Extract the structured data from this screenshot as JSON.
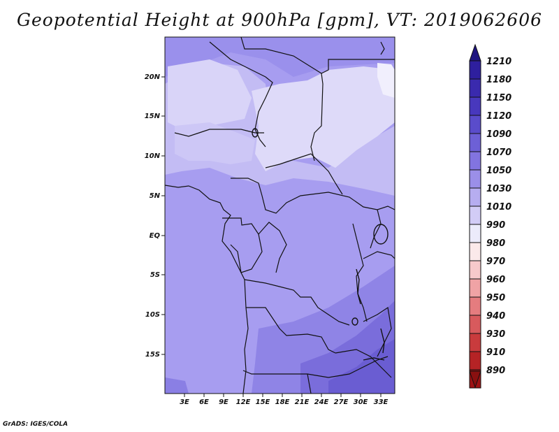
{
  "title": "Geopotential Height at 900hPa [gpm], VT: 2019062606",
  "credit": "GrADS: IGES/COLA",
  "map": {
    "lat_ticks": [
      "20N",
      "15N",
      "10N",
      "5N",
      "EQ",
      "5S",
      "10S",
      "15S"
    ],
    "lon_ticks": [
      "3E",
      "6E",
      "9E",
      "12E",
      "15E",
      "18E",
      "21E",
      "24E",
      "27E",
      "30E",
      "33E"
    ]
  },
  "colorbar": {
    "levels": [
      {
        "label": "1210",
        "color": "#2e1f9e"
      },
      {
        "label": "1180",
        "color": "#3a2aae"
      },
      {
        "label": "1150",
        "color": "#4838bd"
      },
      {
        "label": "1120",
        "color": "#5a4ccb"
      },
      {
        "label": "1090",
        "color": "#6d60d6"
      },
      {
        "label": "1070",
        "color": "#8274e0"
      },
      {
        "label": "1050",
        "color": "#9b8fe8"
      },
      {
        "label": "1030",
        "color": "#b6adf0"
      },
      {
        "label": "1010",
        "color": "#d2ccf6"
      },
      {
        "label": "990",
        "color": "#ecebfb"
      },
      {
        "label": "980",
        "color": "#fbe9ea"
      },
      {
        "label": "970",
        "color": "#f7c9cb"
      },
      {
        "label": "960",
        "color": "#f0a3a5"
      },
      {
        "label": "950",
        "color": "#e57c7f"
      },
      {
        "label": "940",
        "color": "#d85a5d"
      },
      {
        "label": "930",
        "color": "#c93b3d"
      },
      {
        "label": "910",
        "color": "#b52325"
      },
      {
        "label": "890",
        "color": "#9e1214"
      }
    ],
    "top_color": "#1e1480",
    "bottom_color": "#8a1010"
  }
}
